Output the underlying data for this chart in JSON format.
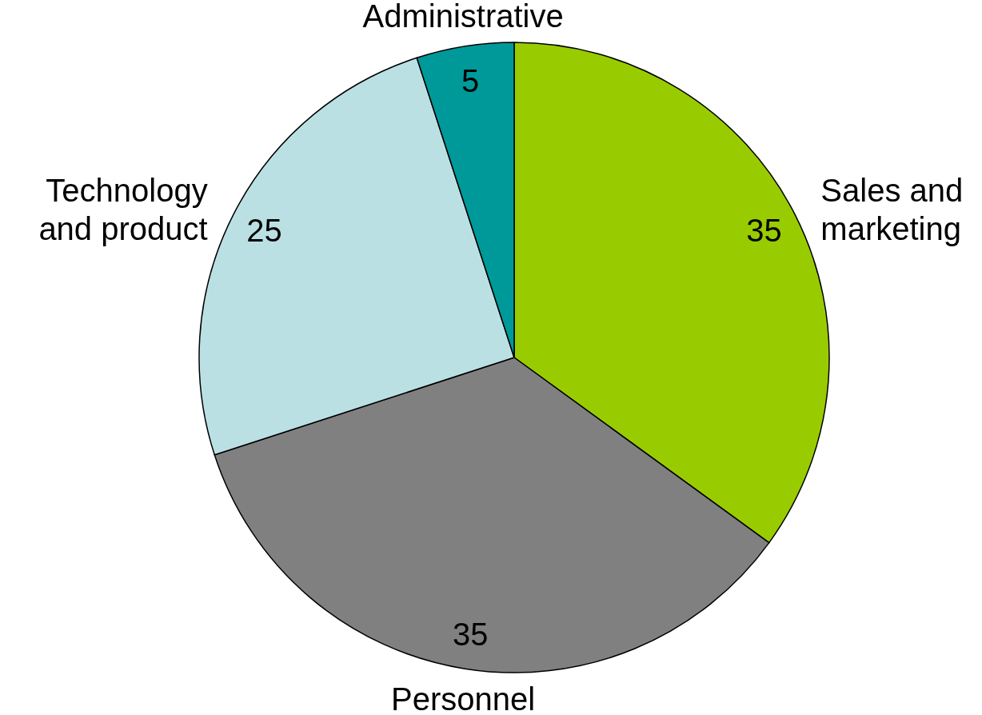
{
  "chart_data": {
    "type": "pie",
    "categories": [
      "Sales and marketing",
      "Personnel",
      "Technology and product",
      "Administrative"
    ],
    "values": [
      35,
      35,
      25,
      5
    ],
    "colors": [
      "#99cc00",
      "#808080",
      "#bbe0e3",
      "#009999"
    ],
    "data_labels": true
  }
}
